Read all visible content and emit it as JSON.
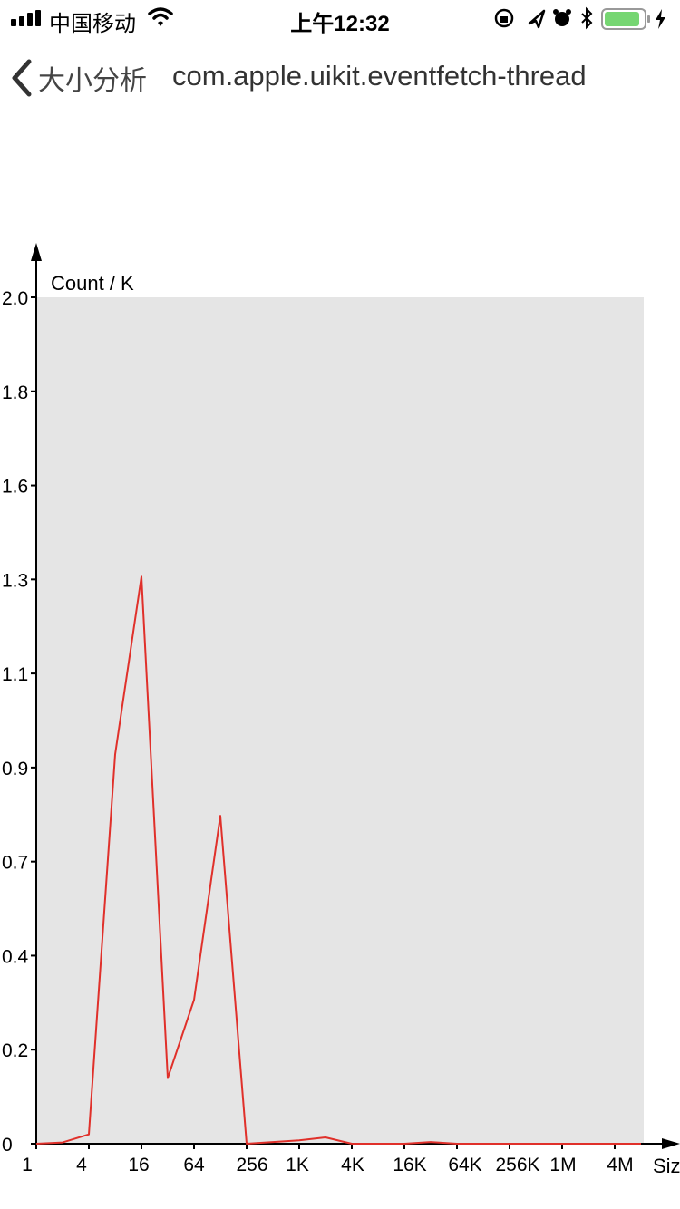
{
  "status_bar": {
    "carrier": "中国移动",
    "time": "上午12:32",
    "battery_color": "#76d672"
  },
  "nav": {
    "back_label": "大小分析",
    "title": "com.apple.uikit.eventfetch-thread"
  },
  "chart_data": {
    "type": "line",
    "ylabel": "Count / K",
    "xlabel": "Siz",
    "x_tick_labels": [
      "1",
      "4",
      "16",
      "64",
      "256",
      "1K",
      "4K",
      "16K",
      "64K",
      "256K",
      "1M",
      "4M"
    ],
    "y_tick_labels": [
      "0",
      "0.2",
      "0.4",
      "0.7",
      "0.9",
      "1.1",
      "1.3",
      "1.6",
      "1.8",
      "2.0"
    ],
    "ylim": [
      0,
      2.0
    ],
    "series": [
      {
        "color": "#e0302a",
        "x_bucket_index": [
          0,
          1,
          2,
          3,
          4,
          5,
          6,
          7,
          8,
          9,
          10,
          11,
          12,
          13,
          14,
          15,
          16,
          17,
          18,
          19,
          20,
          21,
          22,
          23
        ],
        "values": [
          0,
          0.003,
          0.022,
          0.92,
          1.34,
          0.155,
          0.34,
          0.775,
          0,
          0.004,
          0.008,
          0.015,
          0,
          0,
          0,
          0.004,
          0,
          0,
          0,
          0,
          0,
          0,
          0,
          0
        ]
      }
    ],
    "plot_background": "#e5e5e5",
    "grid": false
  }
}
